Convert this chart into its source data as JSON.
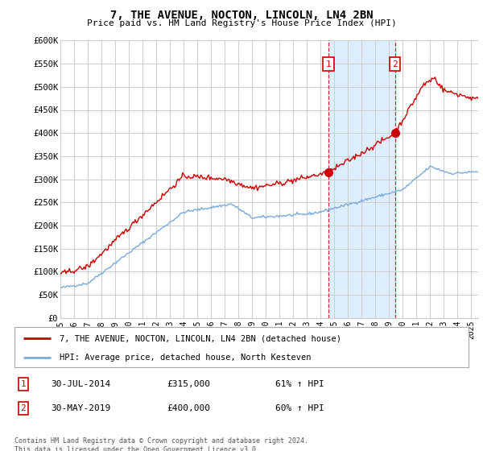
{
  "title": "7, THE AVENUE, NOCTON, LINCOLN, LN4 2BN",
  "subtitle": "Price paid vs. HM Land Registry's House Price Index (HPI)",
  "legend_line1": "7, THE AVENUE, NOCTON, LINCOLN, LN4 2BN (detached house)",
  "legend_line2": "HPI: Average price, detached house, North Kesteven",
  "annotation1": {
    "label": "1",
    "date": "30-JUL-2014",
    "price": "£315,000",
    "hpi": "61% ↑ HPI"
  },
  "annotation2": {
    "label": "2",
    "date": "30-MAY-2019",
    "price": "£400,000",
    "hpi": "60% ↑ HPI"
  },
  "footer": "Contains HM Land Registry data © Crown copyright and database right 2024.\nThis data is licensed under the Open Government Licence v3.0.",
  "ylim": [
    0,
    600000
  ],
  "yticks": [
    0,
    50000,
    100000,
    150000,
    200000,
    250000,
    300000,
    350000,
    400000,
    450000,
    500000,
    550000,
    600000
  ],
  "ytick_labels": [
    "£0",
    "£50K",
    "£100K",
    "£150K",
    "£200K",
    "£250K",
    "£300K",
    "£350K",
    "£400K",
    "£450K",
    "£500K",
    "£550K",
    "£600K"
  ],
  "red_color": "#cc0000",
  "blue_color": "#7aaadd",
  "shade_color": "#ddeeff",
  "annotation_box_color": "#cc0000",
  "grid_color": "#cccccc",
  "bg_color": "#ffffff",
  "sale1_x": 2014.58,
  "sale1_y": 315000,
  "sale2_x": 2019.42,
  "sale2_y": 400000,
  "xmin": 1995,
  "xmax": 2025.5,
  "xticks": [
    1995,
    1996,
    1997,
    1998,
    1999,
    2000,
    2001,
    2002,
    2003,
    2004,
    2005,
    2006,
    2007,
    2008,
    2009,
    2010,
    2011,
    2012,
    2013,
    2014,
    2015,
    2016,
    2017,
    2018,
    2019,
    2020,
    2021,
    2022,
    2023,
    2024,
    2025
  ]
}
